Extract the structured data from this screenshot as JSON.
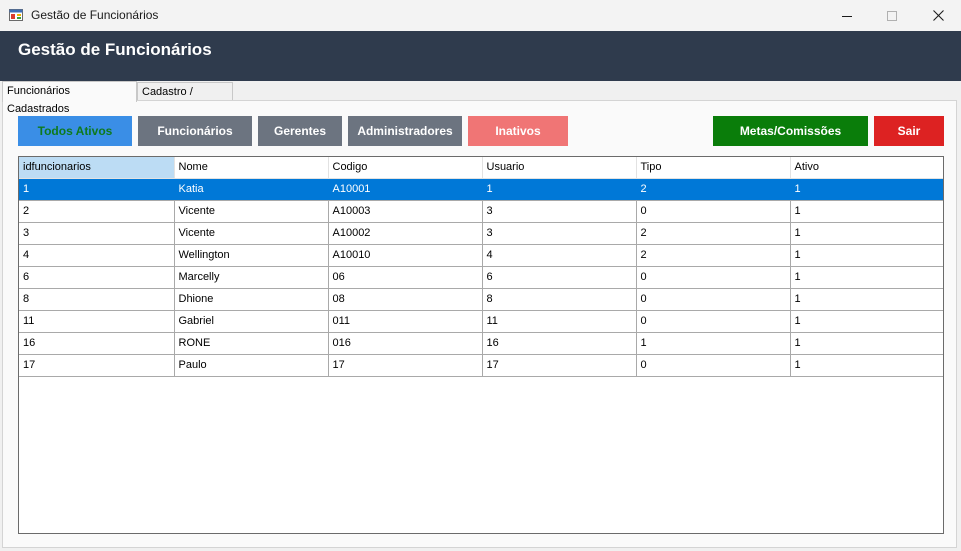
{
  "window": {
    "title": "Gestão de Funcionários"
  },
  "header": {
    "title": "Gestão de Funcionários"
  },
  "tabs": [
    {
      "label": "Funcionários Cadastrados"
    },
    {
      "label": "Cadastro / Edição"
    }
  ],
  "filters": {
    "todos_ativos": {
      "label": "Todos Ativos",
      "bg": "#3a8ee6",
      "fg": "#0e7a1c"
    },
    "funcionarios": {
      "label": "Funcionários",
      "bg": "#6c7480",
      "fg": "#ffffff"
    },
    "gerentes": {
      "label": "Gerentes",
      "bg": "#6c7480",
      "fg": "#ffffff"
    },
    "administradores": {
      "label": "Administradores",
      "bg": "#6c7480",
      "fg": "#ffffff"
    },
    "inativos": {
      "label": "Inativos",
      "bg": "#f07575",
      "fg": "#ffffff"
    }
  },
  "actions": {
    "metas": {
      "label": "Metas/Comissões",
      "bg": "#0a7d0a",
      "fg": "#ffffff"
    },
    "sair": {
      "label": "Sair",
      "bg": "#dd2222",
      "fg": "#ffffff"
    }
  },
  "grid": {
    "columns": [
      "idfuncionarios",
      "Nome",
      "Codigo",
      "Usuario",
      "Tipo",
      "Ativo"
    ],
    "selected_row": 0,
    "rows": [
      [
        "1",
        "Katia",
        "A10001",
        "1",
        "2",
        "1"
      ],
      [
        "2",
        "Vicente",
        "A10003",
        "3",
        "0",
        "1"
      ],
      [
        "3",
        "Vicente",
        "A10002",
        "3",
        "2",
        "1"
      ],
      [
        "4",
        "Wellington",
        "A10010",
        "4",
        "2",
        "1"
      ],
      [
        "6",
        "Marcelly",
        "06",
        "6",
        "0",
        "1"
      ],
      [
        "8",
        "Dhione",
        "08",
        "8",
        "0",
        "1"
      ],
      [
        "11",
        "Gabriel",
        "011",
        "11",
        "0",
        "1"
      ],
      [
        "16",
        "RONE",
        "016",
        "16",
        "1",
        "1"
      ],
      [
        "17",
        "Paulo",
        "17",
        "17",
        "0",
        "1"
      ]
    ]
  },
  "icons": {
    "app": "app-window-icon",
    "minimize": "minimize-icon",
    "maximize": "maximize-icon",
    "close": "close-icon"
  }
}
